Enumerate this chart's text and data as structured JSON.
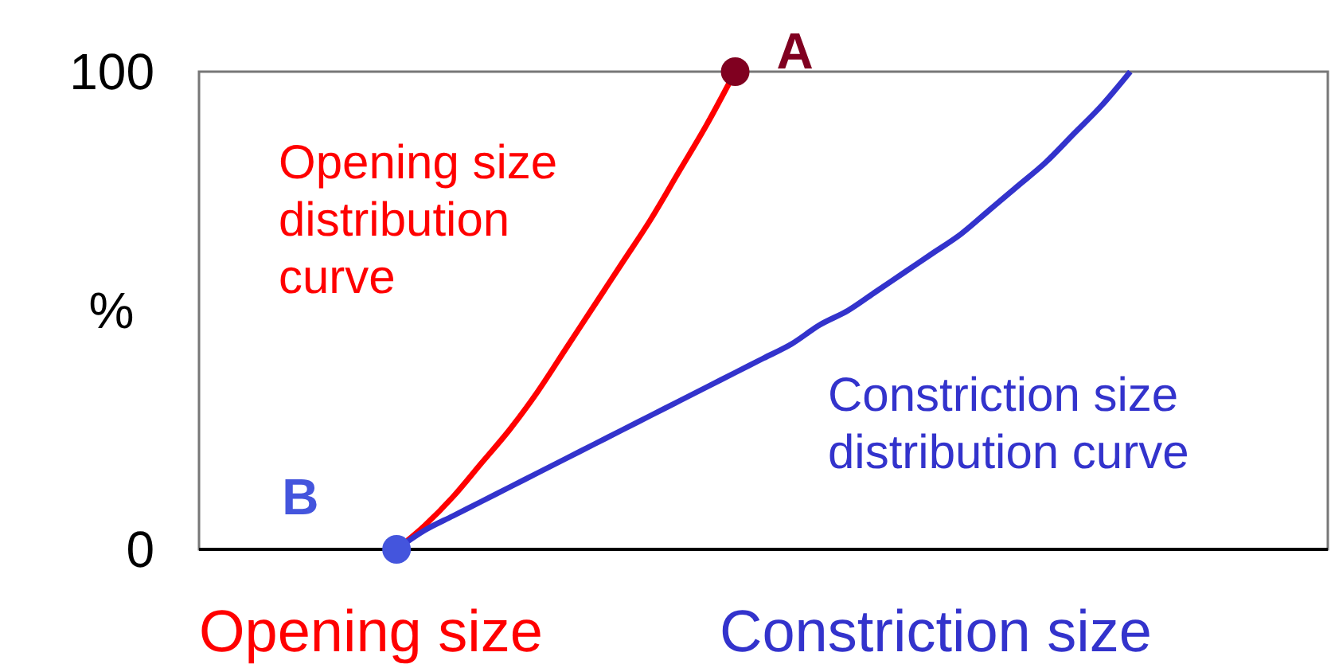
{
  "chart_data": {
    "type": "line",
    "ylabel": "%",
    "ylim": [
      0,
      100
    ],
    "yticks": [
      0,
      100
    ],
    "legend": false,
    "categories": [
      null,
      null,
      null,
      null,
      null,
      null,
      null,
      null,
      null,
      null,
      null,
      null,
      null,
      null,
      null,
      null,
      null,
      null,
      null,
      null,
      null,
      null,
      null,
      null,
      null,
      null,
      null,
      null,
      null,
      null,
      null,
      null,
      null,
      null,
      null,
      null,
      null,
      null,
      null,
      null,
      null
    ],
    "series": [
      {
        "name": "Opening size distribution curve",
        "color": "#ff0000",
        "values": [
          null,
          null,
          null,
          null,
          null,
          null,
          null,
          0,
          5,
          11,
          18,
          25,
          33,
          42,
          51,
          60,
          69,
          79,
          89,
          100,
          null,
          null,
          null,
          null,
          null,
          null,
          null,
          null,
          null,
          null,
          null,
          null,
          null,
          null,
          null,
          null,
          null,
          null,
          null,
          null,
          null
        ]
      },
      {
        "name": "Constriction size distribution curve",
        "color": "#3333cc",
        "values": [
          null,
          null,
          null,
          null,
          null,
          null,
          null,
          0,
          4,
          7,
          10,
          13,
          16,
          19,
          22,
          25,
          28,
          31,
          34,
          37,
          40,
          43,
          47,
          50,
          54,
          58,
          62,
          66,
          71,
          76,
          81,
          87,
          93,
          100,
          null,
          null,
          null,
          null,
          null,
          null,
          null
        ]
      },
      {
        "type": "scatter",
        "marker": "circle",
        "color": "#800020",
        "values": [
          null,
          null,
          null,
          null,
          null,
          null,
          null,
          null,
          null,
          null,
          null,
          null,
          null,
          null,
          null,
          null,
          null,
          null,
          null,
          100,
          null,
          null,
          null,
          null,
          null,
          null,
          null,
          null,
          null,
          null,
          null,
          null,
          null,
          null,
          null,
          null,
          null,
          null,
          null,
          null,
          null
        ]
      },
      {
        "type": "scatter",
        "marker": "circle",
        "color": "#4455dd",
        "values": [
          null,
          null,
          null,
          null,
          null,
          null,
          null,
          0,
          null,
          null,
          null,
          null,
          null,
          null,
          null,
          null,
          null,
          null,
          null,
          null,
          null,
          null,
          null,
          null,
          null,
          null,
          null,
          null,
          null,
          null,
          null,
          null,
          null,
          null,
          null,
          null,
          null,
          null,
          null,
          null,
          null
        ]
      }
    ],
    "annotations": [
      "A",
      "B",
      "Opening size",
      "Constriction size"
    ]
  }
}
